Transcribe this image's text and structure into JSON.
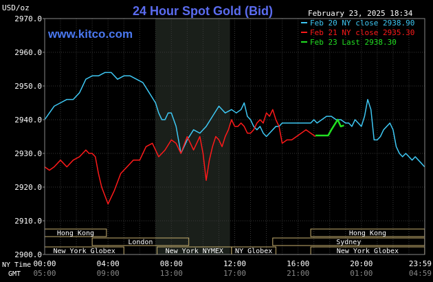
{
  "chart_data": {
    "type": "line",
    "title": "24 Hour Spot Gold (Bid)",
    "watermark": "www.kitco.com",
    "timestamp": "February 23, 2025 18:34",
    "ylabel": "USD/oz",
    "ylim": [
      2900,
      2970
    ],
    "y_ticks": [
      "2970.0",
      "2960.0",
      "2950.0",
      "2940.0",
      "2930.0",
      "2920.0",
      "2910.0",
      "2900.0"
    ],
    "x_ticks_ny": [
      "00:00",
      "04:00",
      "08:00",
      "12:00",
      "16:00",
      "20:00",
      "23:59"
    ],
    "x_ticks_gmt": [
      "05:00",
      "09:00",
      "13:00",
      "17:00",
      "21:00",
      "01:00",
      "04:59"
    ],
    "row_label_ny": "NY Time",
    "row_label_gmt": "GMT",
    "shaded_hours": [
      7,
      11.7
    ],
    "grid": true,
    "legend": [
      {
        "text": "Feb 20 NY close 2938.90",
        "color": "#3ec8f4"
      },
      {
        "text": "Feb 21 NY close 2935.30",
        "color": "#ff1a1a"
      },
      {
        "text": "Feb 23 Last 2938.30",
        "color": "#22e022"
      }
    ],
    "sessions": [
      {
        "name": "Hong Kong",
        "start": 0,
        "end": 3.9,
        "row": 0
      },
      {
        "name": "Hong Kong",
        "start": 16.8,
        "end": 23.99,
        "row": 0
      },
      {
        "name": "London",
        "start": 3,
        "end": 9.1,
        "row": 1
      },
      {
        "name": "Sydney",
        "start": 14.4,
        "end": 23.99,
        "row": 1
      },
      {
        "name": "New York Globex",
        "start": 0,
        "end": 5,
        "row": 2
      },
      {
        "name": "New York NYMEX",
        "start": 7.1,
        "end": 11.8,
        "row": 2
      },
      {
        "name": "NY Globex",
        "start": 11.8,
        "end": 14.6,
        "row": 2
      },
      {
        "name": "New York Globex",
        "start": 16.8,
        "end": 23.99,
        "row": 2
      }
    ],
    "series": [
      {
        "name": "Feb 20",
        "color": "#3ec8f4",
        "x": [
          0,
          0.3,
          0.6,
          1,
          1.4,
          1.8,
          2.2,
          2.6,
          3,
          3.4,
          3.8,
          4.2,
          4.6,
          5,
          5.4,
          5.8,
          6.2,
          6.6,
          7,
          7.2,
          7.4,
          7.6,
          7.8,
          8,
          8.3,
          8.6,
          9,
          9.4,
          9.8,
          10.2,
          10.6,
          11,
          11.4,
          11.8,
          12.1,
          12.4,
          12.6,
          12.8,
          13,
          13.2,
          13.4,
          13.6,
          13.8,
          14,
          14.2,
          14.4,
          14.6,
          14.8,
          15,
          15.3,
          15.6,
          15.9,
          16.2,
          16.5,
          16.8,
          17,
          17.2,
          17.5,
          17.8,
          18.1,
          18.4,
          18.7,
          19,
          19.2,
          19.4,
          19.6,
          19.8,
          20,
          20.2,
          20.4,
          20.6,
          20.8,
          21,
          21.2,
          21.4,
          21.6,
          21.8,
          22,
          22.2,
          22.4,
          22.6,
          22.8,
          23,
          23.2,
          23.4,
          23.6,
          23.8,
          23.99
        ],
        "values": [
          2940,
          2942,
          2944,
          2945,
          2946,
          2946,
          2948,
          2952,
          2953,
          2953,
          2954,
          2954,
          2952,
          2953,
          2953,
          2952,
          2951,
          2948,
          2945,
          2942,
          2940,
          2940,
          2942,
          2942,
          2938,
          2930,
          2934,
          2937,
          2936,
          2938,
          2941,
          2944,
          2942,
          2943,
          2942,
          2943,
          2945,
          2941,
          2940,
          2938,
          2937,
          2938,
          2936,
          2935,
          2936,
          2937,
          2938,
          2938,
          2939,
          2939,
          2939,
          2939,
          2939,
          2939,
          2939,
          2940,
          2939,
          2940,
          2941,
          2941,
          2940,
          2940,
          2939,
          2939,
          2938,
          2940,
          2939,
          2938,
          2941,
          2946,
          2943,
          2934,
          2934,
          2935,
          2937,
          2938,
          2939,
          2937,
          2932,
          2930,
          2929,
          2930,
          2929,
          2928,
          2929,
          2928,
          2927,
          2926
        ]
      },
      {
        "name": "Feb 21",
        "color": "#ff1a1a",
        "x": [
          0,
          0.3,
          0.6,
          1,
          1.4,
          1.8,
          2.2,
          2.6,
          2.8,
          3,
          3.2,
          3.4,
          3.6,
          4,
          4.4,
          4.8,
          5.2,
          5.6,
          6,
          6.4,
          6.8,
          7.2,
          7.6,
          8,
          8.3,
          8.6,
          9,
          9.4,
          9.6,
          9.8,
          10,
          10.2,
          10.4,
          10.6,
          10.8,
          11,
          11.2,
          11.4,
          11.6,
          11.8,
          12,
          12.2,
          12.4,
          12.6,
          12.8,
          13,
          13.2,
          13.4,
          13.6,
          13.8,
          14,
          14.2,
          14.4,
          14.6,
          14.8,
          15,
          15.3,
          15.6,
          15.9,
          16.2,
          16.5,
          16.8,
          17.1
        ],
        "values": [
          2926,
          2925,
          2926,
          2928,
          2926,
          2928,
          2929,
          2931,
          2930,
          2930,
          2929,
          2924,
          2920,
          2915,
          2919,
          2924,
          2926,
          2928,
          2928,
          2932,
          2933,
          2929,
          2931,
          2934,
          2933,
          2930,
          2935,
          2931,
          2933,
          2935,
          2930,
          2922,
          2928,
          2932,
          2935,
          2934,
          2932,
          2935,
          2937,
          2940,
          2938,
          2938,
          2939,
          2938,
          2936,
          2936,
          2937,
          2939,
          2940,
          2939,
          2942,
          2941,
          2943,
          2940,
          2938,
          2933,
          2934,
          2934,
          2935,
          2936,
          2937,
          2936,
          2935
        ]
      },
      {
        "name": "Feb 23",
        "color": "#22e022",
        "x": [
          17.1,
          17.5,
          17.9,
          18.1,
          18.3,
          18.5,
          18.7,
          18.9
        ],
        "values": [
          2935.3,
          2935.3,
          2935.3,
          2937,
          2938.5,
          2940,
          2938,
          2938.3
        ]
      }
    ]
  }
}
